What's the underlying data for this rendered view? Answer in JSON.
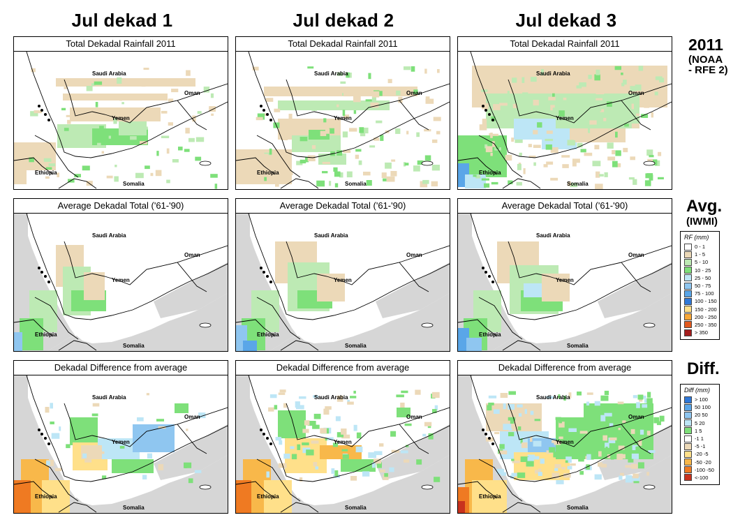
{
  "columns": [
    "Jul dekad 1",
    "Jul dekad 2",
    "Jul dekad 3"
  ],
  "row_titles": [
    "Total Dekadal Rainfall 2011",
    "Average Dekadal Total ('61-'90)",
    "Dekadal Difference from average"
  ],
  "row_labels": {
    "r0": {
      "main": "2011",
      "sub1": "(NOAA",
      "sub2": "- RFE 2)"
    },
    "r1": {
      "main": "Avg.",
      "sub": "(IWMI)"
    },
    "r2": {
      "main": "Diff."
    }
  },
  "place_names": {
    "saudi": "Saudi Arabia",
    "oman": "Oman",
    "yemen": "Yemen",
    "ethiopia": "Ethiopia",
    "somalia": "Somalia"
  },
  "colors": {
    "land_nodata": "#d6d6d6",
    "sea": "#ffffff",
    "border": "#000000"
  },
  "rf_legend": {
    "title": "RF (mm)",
    "items": [
      {
        "label": "0 - 1",
        "color": "#ffffff"
      },
      {
        "label": "1 - 5",
        "color": "#ecd9b8"
      },
      {
        "label": "5 - 10",
        "color": "#bdeab4"
      },
      {
        "label": "10 - 25",
        "color": "#7ee07a"
      },
      {
        "label": "25 - 50",
        "color": "#bde6f6"
      },
      {
        "label": "50 - 75",
        "color": "#8fc6f0"
      },
      {
        "label": "75 - 100",
        "color": "#5aa6e8"
      },
      {
        "label": "100 - 150",
        "color": "#2f78d8"
      },
      {
        "label": "150 - 200",
        "color": "#ffe08a"
      },
      {
        "label": "200 - 250",
        "color": "#f8a838"
      },
      {
        "label": "250 - 350",
        "color": "#e25a1e"
      },
      {
        "label": "> 350",
        "color": "#a51e1e"
      }
    ]
  },
  "diff_legend": {
    "title": "Diff (mm)",
    "items": [
      {
        "label": "> 100",
        "color": "#2f78d8"
      },
      {
        "label": "50  100",
        "color": "#5aa6e8"
      },
      {
        "label": "20  50",
        "color": "#8fc6f0"
      },
      {
        "label": "5  20",
        "color": "#bde6f6"
      },
      {
        "label": "1  5",
        "color": "#7ee07a"
      },
      {
        "label": "-1  1",
        "color": "#ffffff"
      },
      {
        "label": "-5  -1",
        "color": "#ecd9b8"
      },
      {
        "label": "-20  -5",
        "color": "#ffe08a"
      },
      {
        "label": "-50  -20",
        "color": "#f8b84a"
      },
      {
        "label": "-100  -50",
        "color": "#ef7a22"
      },
      {
        "label": "<-100",
        "color": "#c8321e"
      }
    ]
  }
}
